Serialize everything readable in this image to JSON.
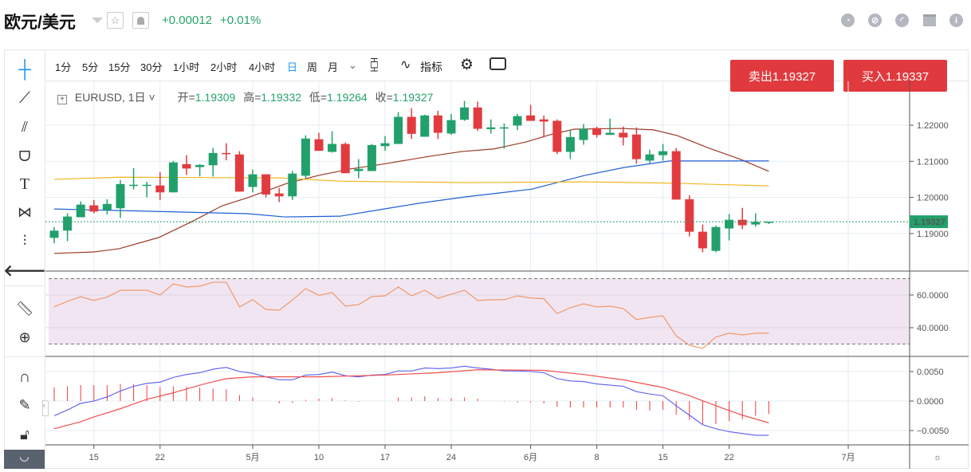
{
  "header": {
    "title": "欧元/美元",
    "change": "+0.00012",
    "change_pct": "+0.01%"
  },
  "header_icons": [
    "pie-chart-icon",
    "compass-icon",
    "gauge-icon",
    "calendar-icon",
    "info-icon"
  ],
  "toolbar": {
    "intervals": [
      "1分",
      "5分",
      "15分",
      "30分",
      "1小时",
      "2小时",
      "4小时",
      "日",
      "周",
      "月"
    ],
    "active_interval": "日",
    "indicators_label": "指标"
  },
  "trade": {
    "sell_label": "卖出1.19327",
    "buy_label": "买入1.19337"
  },
  "legend": {
    "symbol": "EURUSD, 1日",
    "open_label": "开=",
    "open": "1.19309",
    "high_label": "高=",
    "high": "1.19332",
    "low_label": "低=",
    "low": "1.19264",
    "close_label": "收=",
    "close": "1.19327"
  },
  "colors": {
    "up": "#22a06b",
    "down": "#e23b3f",
    "ma_brown": "#9a3a26",
    "ma_blue": "#1f5fd6",
    "ma_yellow": "#f2b822",
    "rsi": "#f0925e",
    "macd": "#5a5cf0",
    "signal": "#f05050",
    "accent": "#2196f3"
  },
  "chart_data": {
    "type": "candlestick",
    "price_axis": {
      "ticks": [
        "1.22000",
        "1.21000",
        "1.20000",
        "1.19000"
      ],
      "tick_values": [
        1.22,
        1.21,
        1.2,
        1.19
      ],
      "last_price": "1.19327"
    },
    "x_labels": [
      {
        "label": "15",
        "index": 3
      },
      {
        "label": "22",
        "index": 8
      },
      {
        "label": "5月",
        "index": 15
      },
      {
        "label": "10",
        "index": 20
      },
      {
        "label": "17",
        "index": 25
      },
      {
        "label": "24",
        "index": 30
      },
      {
        "label": "6月",
        "index": 36
      },
      {
        "label": "8",
        "index": 41
      },
      {
        "label": "15",
        "index": 46
      },
      {
        "label": "22",
        "index": 51
      },
      {
        "label": "7月",
        "index": 60
      }
    ],
    "ohlc": [
      [
        1.1888,
        1.1918,
        1.1873,
        1.1908
      ],
      [
        1.1908,
        1.1956,
        1.1879,
        1.1947
      ],
      [
        1.1945,
        1.1989,
        1.1945,
        1.198
      ],
      [
        1.1978,
        1.1993,
        1.1956,
        1.1961
      ],
      [
        1.1965,
        1.1995,
        1.1953,
        1.1982
      ],
      [
        1.197,
        1.2048,
        1.1943,
        1.2037
      ],
      [
        1.2034,
        1.2081,
        1.2022,
        1.2035
      ],
      [
        1.2032,
        1.2043,
        1.2,
        1.2035
      ],
      [
        1.2033,
        1.207,
        1.1993,
        1.2014
      ],
      [
        1.2014,
        1.2101,
        1.2014,
        1.2097
      ],
      [
        1.2092,
        1.2117,
        1.2062,
        1.208
      ],
      [
        1.2084,
        1.2092,
        1.2058,
        1.209
      ],
      [
        1.2089,
        1.2137,
        1.2058,
        1.2123
      ],
      [
        1.2123,
        1.215,
        1.2103,
        1.212
      ],
      [
        1.2119,
        1.2128,
        1.2016,
        1.2016
      ],
      [
        1.2029,
        1.2077,
        1.2014,
        1.2064
      ],
      [
        1.2064,
        1.2064,
        1.2,
        1.2008
      ],
      [
        1.2011,
        1.2026,
        1.1987,
        1.2003
      ],
      [
        1.2003,
        1.2073,
        1.1993,
        1.2066
      ],
      [
        1.206,
        1.2172,
        1.2053,
        1.2163
      ],
      [
        1.2161,
        1.2179,
        1.2129,
        1.2129
      ],
      [
        1.2126,
        1.2183,
        1.2124,
        1.2148
      ],
      [
        1.2148,
        1.2152,
        1.2067,
        1.2067
      ],
      [
        1.2073,
        1.2106,
        1.2053,
        1.2079
      ],
      [
        1.2073,
        1.2148,
        1.2073,
        1.2145
      ],
      [
        1.2142,
        1.217,
        1.2129,
        1.215
      ],
      [
        1.2148,
        1.2236,
        1.2148,
        1.2223
      ],
      [
        1.2223,
        1.2247,
        1.2162,
        1.2176
      ],
      [
        1.2168,
        1.2229,
        1.2168,
        1.2227
      ],
      [
        1.2227,
        1.224,
        1.2162,
        1.2179
      ],
      [
        1.2177,
        1.2231,
        1.2173,
        1.2214
      ],
      [
        1.2215,
        1.2267,
        1.2212,
        1.2249
      ],
      [
        1.2249,
        1.2265,
        1.2184,
        1.219
      ],
      [
        1.2189,
        1.2216,
        1.2177,
        1.2194
      ],
      [
        1.2193,
        1.2205,
        1.2135,
        1.2194
      ],
      [
        1.2199,
        1.2231,
        1.2186,
        1.2225
      ],
      [
        1.2227,
        1.2256,
        1.2212,
        1.2212
      ],
      [
        1.2216,
        1.2227,
        1.2166,
        1.221
      ],
      [
        1.2212,
        1.2216,
        1.212,
        1.2126
      ],
      [
        1.2126,
        1.2187,
        1.2106,
        1.2167
      ],
      [
        1.2159,
        1.2203,
        1.2146,
        1.219
      ],
      [
        1.2192,
        1.2196,
        1.2166,
        1.2173
      ],
      [
        1.2173,
        1.2218,
        1.2173,
        1.2179
      ],
      [
        1.2179,
        1.2196,
        1.2144,
        1.2166
      ],
      [
        1.2174,
        1.2194,
        1.2093,
        1.2106
      ],
      [
        1.2102,
        1.2132,
        1.2095,
        1.2119
      ],
      [
        1.2117,
        1.2148,
        1.2102,
        1.2128
      ],
      [
        1.2128,
        1.2137,
        1.1994,
        1.1994
      ],
      [
        1.1995,
        1.2006,
        1.1892,
        1.1905
      ],
      [
        1.1905,
        1.1925,
        1.1848,
        1.1859
      ],
      [
        1.1852,
        1.1922,
        1.1848,
        1.1918
      ],
      [
        1.1914,
        1.1954,
        1.1881,
        1.1938
      ],
      [
        1.1938,
        1.1971,
        1.1912,
        1.1923
      ],
      [
        1.1925,
        1.1956,
        1.1919,
        1.1932
      ],
      [
        1.19309,
        1.19332,
        1.19264,
        1.19327
      ]
    ],
    "moving_averages": [
      {
        "name": "ma_brown",
        "points": [
          [
            0,
            1.1845
          ],
          [
            3,
            1.1849
          ],
          [
            4.9,
            1.1858
          ],
          [
            7.9,
            1.1889
          ],
          [
            10.4,
            1.1933
          ],
          [
            12.7,
            1.1977
          ],
          [
            14.6,
            1.1999
          ],
          [
            17.6,
            1.2039
          ],
          [
            20,
            1.2061
          ],
          [
            22.4,
            1.2079
          ],
          [
            24.8,
            1.2092
          ],
          [
            28.4,
            1.2114
          ],
          [
            30.8,
            1.2127
          ],
          [
            33.2,
            1.2134
          ],
          [
            35.7,
            1.2154
          ],
          [
            37.5,
            1.2174
          ],
          [
            39.3,
            1.2189
          ],
          [
            42.9,
            1.2191
          ],
          [
            45.3,
            1.2187
          ],
          [
            47.1,
            1.2171
          ],
          [
            49.5,
            1.2136
          ],
          [
            51.9,
            1.2105
          ],
          [
            54,
            1.2072
          ]
        ]
      },
      {
        "name": "ma_blue",
        "points": [
          [
            0,
            1.1968
          ],
          [
            14.6,
            1.1955
          ],
          [
            17.4,
            1.1946
          ],
          [
            21.6,
            1.1948
          ],
          [
            24.6,
            1.1966
          ],
          [
            27.6,
            1.1984
          ],
          [
            31,
            1.2001
          ],
          [
            36.1,
            1.2023
          ],
          [
            40.1,
            1.2061
          ],
          [
            43.1,
            1.2083
          ],
          [
            46.5,
            1.2101
          ],
          [
            54,
            1.2101
          ]
        ]
      },
      {
        "name": "ma_yellow",
        "points": [
          [
            0,
            1.205
          ],
          [
            5,
            1.2056
          ],
          [
            17,
            1.2054
          ],
          [
            21.6,
            1.2045
          ],
          [
            31,
            1.2041
          ],
          [
            40.1,
            1.2043
          ],
          [
            46,
            1.204
          ],
          [
            54,
            1.2032
          ]
        ]
      }
    ],
    "rsi": {
      "ticks": [
        "60.0000",
        "40.0000"
      ],
      "tick_values": [
        60,
        40
      ],
      "bands": [
        70,
        30
      ],
      "values": [
        52.8,
        56.1,
        59.0,
        56.7,
        58.7,
        62.9,
        62.9,
        62.9,
        60,
        66.8,
        64.9,
        65.4,
        67.8,
        67.8,
        52.7,
        57.1,
        51.2,
        50.7,
        56.9,
        63.9,
        59.8,
        61.5,
        53.2,
        54.1,
        59.0,
        59.5,
        64.9,
        59.5,
        62.9,
        58.0,
        60.5,
        62.9,
        56.7,
        57.1,
        57.1,
        59.5,
        58.2,
        57.7,
        48.6,
        52.2,
        54.6,
        52.7,
        53.2,
        51.7,
        45.0,
        46.3,
        47.3,
        35.0,
        29.3,
        27.3,
        34.3,
        36.6,
        35.6,
        36.6,
        36.6
      ]
    },
    "macd": {
      "ticks": [
        "0.0050",
        "0.0000",
        "−0.0050"
      ],
      "tick_values": [
        0.005,
        0,
        -0.005
      ],
      "macd": [
        -0.0025,
        -0.0015,
        -0.0004,
        0,
        0.0007,
        0.0017,
        0.0025,
        0.003,
        0.0032,
        0.004,
        0.0045,
        0.0048,
        0.0054,
        0.0057,
        0.005,
        0.0047,
        0.0041,
        0.0036,
        0.0036,
        0.0044,
        0.0045,
        0.0049,
        0.0043,
        0.0041,
        0.0044,
        0.0045,
        0.0051,
        0.0051,
        0.0056,
        0.0055,
        0.0056,
        0.0059,
        0.0056,
        0.0054,
        0.0051,
        0.0051,
        0.005,
        0.0048,
        0.0038,
        0.0034,
        0.0033,
        0.0029,
        0.0027,
        0.0025,
        0.0016,
        0.0012,
        0.0009,
        -0.0008,
        -0.0024,
        -0.004,
        -0.0047,
        -0.0052,
        -0.0055,
        -0.0058,
        -0.0058
      ],
      "signal": [
        [
          0,
          -0.0047
        ],
        [
          2,
          -0.0035
        ],
        [
          3,
          -0.0027
        ],
        [
          5,
          -0.0013
        ],
        [
          7,
          0.0003
        ],
        [
          9,
          0.0014
        ],
        [
          11,
          0.0027
        ],
        [
          13,
          0.0038
        ],
        [
          15,
          0.0041
        ],
        [
          20,
          0.0041
        ],
        [
          25,
          0.0044
        ],
        [
          29,
          0.0048
        ],
        [
          32,
          0.0053
        ],
        [
          37,
          0.0052
        ],
        [
          40,
          0.0045
        ],
        [
          43,
          0.0036
        ],
        [
          46,
          0.0023
        ],
        [
          48,
          0.0009
        ],
        [
          50,
          -0.0008
        ],
        [
          52,
          -0.0024
        ],
        [
          54,
          -0.0037
        ]
      ],
      "histogram": [
        0.0023,
        0.0025,
        0.0027,
        0.0027,
        0.0027,
        0.0029,
        0.0029,
        0.0027,
        0.0024,
        0.0025,
        0.0024,
        0.0023,
        0.0021,
        0.002,
        0.001,
        0.0006,
        0,
        -0.0004,
        -0.0003,
        0.0002,
        0.0004,
        0.0005,
        0.0001,
        -0.0001,
        0,
        0,
        0.0006,
        0.0006,
        0.0008,
        0.0005,
        0.0005,
        0.0006,
        0.0004,
        0,
        -0.0001,
        -0.0002,
        -0.0002,
        -0.0004,
        -0.001,
        -0.0011,
        -0.0011,
        -0.0011,
        -0.0011,
        -0.0011,
        -0.0015,
        -0.0016,
        -0.0015,
        -0.0023,
        -0.0032,
        -0.0039,
        -0.0039,
        -0.0034,
        -0.0031,
        -0.0025,
        -0.0022
      ]
    }
  }
}
